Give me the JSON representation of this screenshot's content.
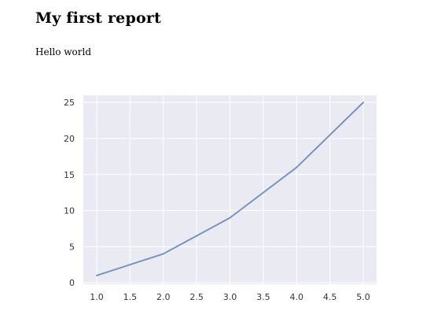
{
  "report": {
    "title": "My first report",
    "text": "Hello world"
  },
  "chart_data": {
    "type": "line",
    "title": "",
    "xlabel": "",
    "ylabel": "",
    "x": [
      1.0,
      2.0,
      3.0,
      4.0,
      5.0
    ],
    "series": [
      {
        "values": [
          1,
          4,
          9,
          16,
          25
        ],
        "color": "#6c8ebf"
      }
    ],
    "xlim": [
      0.8,
      5.2
    ],
    "ylim": [
      -0.2,
      26
    ],
    "xticks": [
      1.0,
      1.5,
      2.0,
      2.5,
      3.0,
      3.5,
      4.0,
      4.5,
      5.0
    ],
    "xtick_labels": [
      "1.0",
      "1.5",
      "2.0",
      "2.5",
      "3.0",
      "3.5",
      "4.0",
      "4.5",
      "5.0"
    ],
    "yticks": [
      0,
      5,
      10,
      15,
      20,
      25
    ],
    "ytick_labels": [
      "0",
      "5",
      "10",
      "15",
      "20",
      "25"
    ],
    "grid": true,
    "style": {
      "background": "#eaeaf2",
      "grid_color": "#ffffff"
    }
  }
}
